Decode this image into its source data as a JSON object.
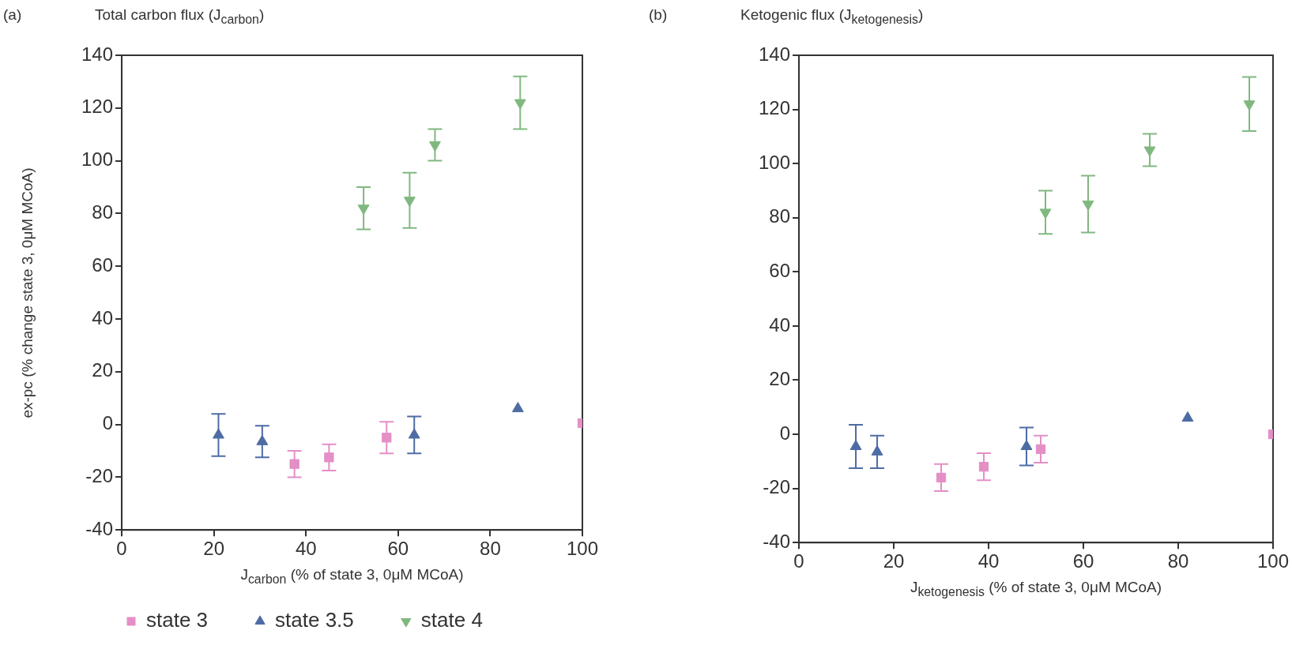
{
  "chart_data": [
    {
      "type": "scatter",
      "title": "Total carbon flux (J$_{carbon}$)",
      "xlabel": "J$_{carbon}$  (% of state 3, 0μM MCoA)",
      "ylabel": "ex-pc (% change state 3, 0μM MCoA)",
      "annotations": [
        "(a)"
      ],
      "xlim": [
        0,
        100
      ],
      "xticks": [
        0,
        20,
        40,
        60,
        80,
        100
      ],
      "ylim": [
        -40,
        140
      ],
      "yticks": [
        -40,
        -20,
        0,
        20,
        40,
        60,
        80,
        100,
        120,
        140
      ],
      "grid": false,
      "legend": "bottom",
      "series": [
        {
          "name": "state 3",
          "color": "#e48fc6",
          "marker": "square",
          "x": [
            37.5,
            45,
            57.5,
            100
          ],
          "values": [
            -15,
            -12.5,
            -5,
            0.5
          ],
          "errors": [
            5,
            5,
            6,
            null
          ]
        },
        {
          "name": "state 3.5",
          "color": "#4e6ca4",
          "marker": "triangle",
          "x": [
            21,
            30.5,
            63.5,
            86
          ],
          "values": [
            -4,
            -6.5,
            -4,
            6
          ],
          "errors": [
            8,
            6,
            7,
            null
          ]
        },
        {
          "name": "state 4",
          "color": "#80b880",
          "marker": "triangle-down",
          "x": [
            52.5,
            62.5,
            68,
            86.5
          ],
          "values": [
            82,
            85,
            106,
            122
          ],
          "errors": [
            8,
            10.5,
            6,
            10
          ]
        }
      ]
    },
    {
      "type": "scatter",
      "title": "Ketogenic flux (J$_{ketogenesis}$)",
      "xlabel": "J$_{ketogenesis}$ (% of state 3, 0μM MCoA)",
      "annotations": [
        "(b)"
      ],
      "xlim": [
        0,
        100
      ],
      "xticks": [
        0,
        20,
        40,
        60,
        80,
        100
      ],
      "ylim": [
        -40,
        140
      ],
      "yticks": [
        -40,
        -20,
        0,
        20,
        40,
        60,
        80,
        100,
        120,
        140
      ],
      "grid": false,
      "series": [
        {
          "color": "#e48fc6",
          "marker": "square",
          "x": [
            30,
            39,
            51,
            100
          ],
          "values": [
            -16,
            -12,
            -5.5,
            0
          ],
          "errors": [
            5,
            5,
            5,
            null
          ]
        },
        {
          "color": "#4e6ca4",
          "marker": "triangle",
          "x": [
            12,
            16.5,
            48,
            82
          ],
          "values": [
            -4.5,
            -6.5,
            -4.5,
            6
          ],
          "errors": [
            8,
            6,
            7,
            null
          ]
        },
        {
          "color": "#80b880",
          "marker": "triangle-down",
          "x": [
            52,
            61,
            74,
            95
          ],
          "values": [
            82,
            85,
            105,
            122
          ],
          "errors": [
            8,
            10.5,
            6,
            10
          ]
        }
      ]
    }
  ]
}
